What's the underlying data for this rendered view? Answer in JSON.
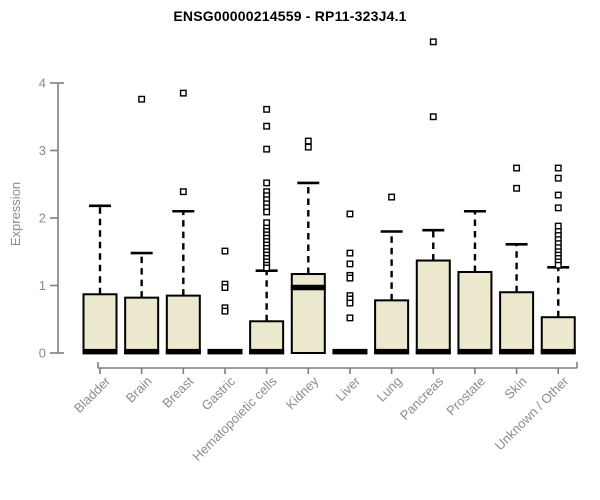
{
  "chart_data": {
    "type": "boxplot",
    "title": "ENSG00000214559 - RP11-323J4.1",
    "ylabel": "Expression",
    "xlabel": "",
    "ylim": [
      0,
      4
    ],
    "yticks": [
      0,
      1,
      2,
      3,
      4
    ],
    "grid": false,
    "legend": "none",
    "categories": [
      "Bladder",
      "Brain",
      "Breast",
      "Gastric",
      "Hematopoietic cells",
      "Kidney",
      "Liver",
      "Lung",
      "Pancreas",
      "Prostate",
      "Skin",
      "Unknown / Other"
    ],
    "series": [
      {
        "category": "Bladder",
        "q1": 0,
        "median": 0.02,
        "q3": 0.87,
        "whisker_low": 0,
        "whisker_high": 2.18,
        "outliers": []
      },
      {
        "category": "Brain",
        "q1": 0,
        "median": 0.02,
        "q3": 0.82,
        "whisker_low": 0,
        "whisker_high": 1.48,
        "outliers": [
          3.76
        ]
      },
      {
        "category": "Breast",
        "q1": 0,
        "median": 0.02,
        "q3": 0.85,
        "whisker_low": 0,
        "whisker_high": 2.1,
        "outliers": [
          3.85,
          2.39
        ]
      },
      {
        "category": "Gastric",
        "q1": 0,
        "median": 0.02,
        "q3": 0.03,
        "whisker_low": 0,
        "whisker_high": 0.03,
        "outliers": [
          1.51,
          1.02,
          0.97,
          0.67,
          0.62
        ]
      },
      {
        "category": "Hematopoietic cells",
        "q1": 0,
        "median": 0.02,
        "q3": 0.47,
        "whisker_low": 0,
        "whisker_high": 1.22,
        "outliers": [
          3.61,
          3.36,
          3.02,
          2.52,
          2.39,
          2.33,
          2.27,
          2.21,
          2.15,
          2.09,
          1.93,
          1.85,
          1.8,
          1.75,
          1.7,
          1.65,
          1.6,
          1.55,
          1.5,
          1.45,
          1.4,
          1.35,
          1.3,
          1.26
        ]
      },
      {
        "category": "Kidney",
        "q1": 0,
        "median": 0.97,
        "q3": 1.17,
        "whisker_low": 0,
        "whisker_high": 2.52,
        "outliers": [
          3.14,
          3.05
        ]
      },
      {
        "category": "Liver",
        "q1": 0,
        "median": 0.02,
        "q3": 0.03,
        "whisker_low": 0,
        "whisker_high": 0.03,
        "outliers": [
          2.06,
          1.48,
          1.32,
          1.15,
          1.11,
          0.85,
          0.8,
          0.74,
          0.52
        ]
      },
      {
        "category": "Lung",
        "q1": 0,
        "median": 0.02,
        "q3": 0.78,
        "whisker_low": 0,
        "whisker_high": 1.8,
        "outliers": [
          2.31
        ]
      },
      {
        "category": "Pancreas",
        "q1": 0,
        "median": 0.02,
        "q3": 1.37,
        "whisker_low": 0,
        "whisker_high": 1.82,
        "outliers": [
          4.61,
          3.5
        ]
      },
      {
        "category": "Prostate",
        "q1": 0,
        "median": 0.02,
        "q3": 1.2,
        "whisker_low": 0,
        "whisker_high": 2.1,
        "outliers": []
      },
      {
        "category": "Skin",
        "q1": 0,
        "median": 0.02,
        "q3": 0.9,
        "whisker_low": 0,
        "whisker_high": 1.61,
        "outliers": [
          2.74,
          2.44
        ]
      },
      {
        "category": "Unknown / Other",
        "q1": 0,
        "median": 0.02,
        "q3": 0.53,
        "whisker_low": 0,
        "whisker_high": 1.27,
        "outliers": [
          2.74,
          2.59,
          2.34,
          2.15,
          1.88,
          1.8,
          1.74,
          1.68,
          1.62,
          1.56,
          1.5,
          1.45,
          1.4,
          1.35,
          1.3
        ]
      }
    ],
    "style": {
      "box_fill": "#ece8cd",
      "box_stroke": "#000000",
      "median_color": "#000000",
      "whisker_color": "#000000",
      "outlier_fill": "#ffffff",
      "outlier_stroke": "#000000",
      "axis_color": "#7f7f7f",
      "tick_label_color": "#8c8c8c",
      "title_color": "#000000",
      "background": "#ffffff"
    }
  }
}
